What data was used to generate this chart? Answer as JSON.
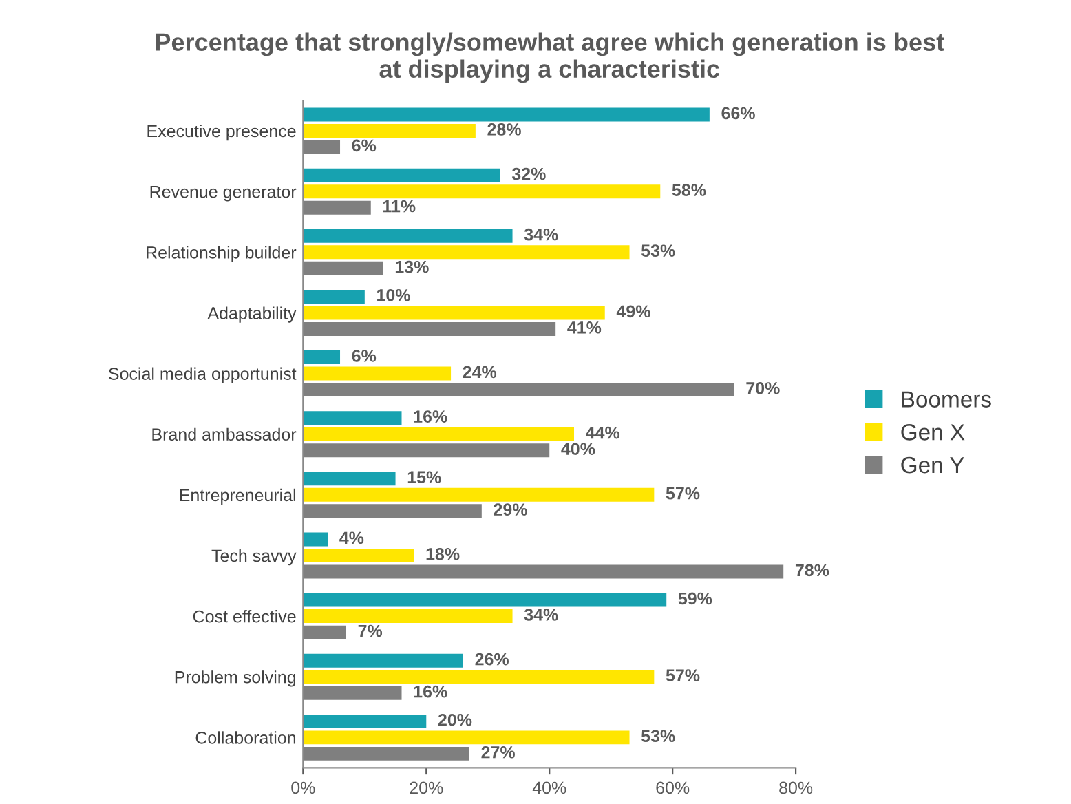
{
  "chart_data": {
    "type": "bar",
    "orientation": "horizontal",
    "title": "Percentage that strongly/somewhat agree which generation is best\nat displaying a characteristic",
    "categories": [
      "Executive presence",
      "Revenue generator",
      "Relationship builder",
      "Adaptability",
      "Social media opportunist",
      "Brand ambassador",
      "Entrepreneurial",
      "Tech savvy",
      "Cost effective",
      "Problem solving",
      "Collaboration"
    ],
    "series": [
      {
        "name": "Boomers",
        "color": "#17a2b0",
        "values": [
          66,
          32,
          34,
          10,
          6,
          16,
          15,
          4,
          59,
          26,
          20
        ],
        "value_labels": [
          "66%",
          "32%",
          "34%",
          "10%",
          "6%",
          "16%",
          "15%",
          "4%",
          "59%",
          "26%",
          "20%"
        ]
      },
      {
        "name": "Gen X",
        "color": "#ffe600",
        "values": [
          28,
          58,
          53,
          49,
          24,
          44,
          57,
          18,
          34,
          57,
          53
        ],
        "value_labels": [
          "28%",
          "58%",
          "53%",
          "49%",
          "24%",
          "44%",
          "57%",
          "18%",
          "34%",
          "57%",
          "53%"
        ]
      },
      {
        "name": "Gen Y",
        "color": "#7f7f7f",
        "values": [
          6,
          11,
          13,
          41,
          70,
          40,
          29,
          78,
          7,
          16,
          27
        ],
        "value_labels": [
          "6%",
          "11%",
          "13%",
          "41%",
          "70%",
          "40%",
          "29%",
          "78%",
          "7%",
          "16%",
          "27%"
        ]
      }
    ],
    "xlim": [
      0,
      80
    ],
    "xticks": [
      {
        "value": 0,
        "label": "0%"
      },
      {
        "value": 20,
        "label": "20%"
      },
      {
        "value": 40,
        "label": "40%"
      },
      {
        "value": 60,
        "label": "60%"
      },
      {
        "value": 80,
        "label": "80%"
      }
    ],
    "legend": "right",
    "grid": false
  }
}
